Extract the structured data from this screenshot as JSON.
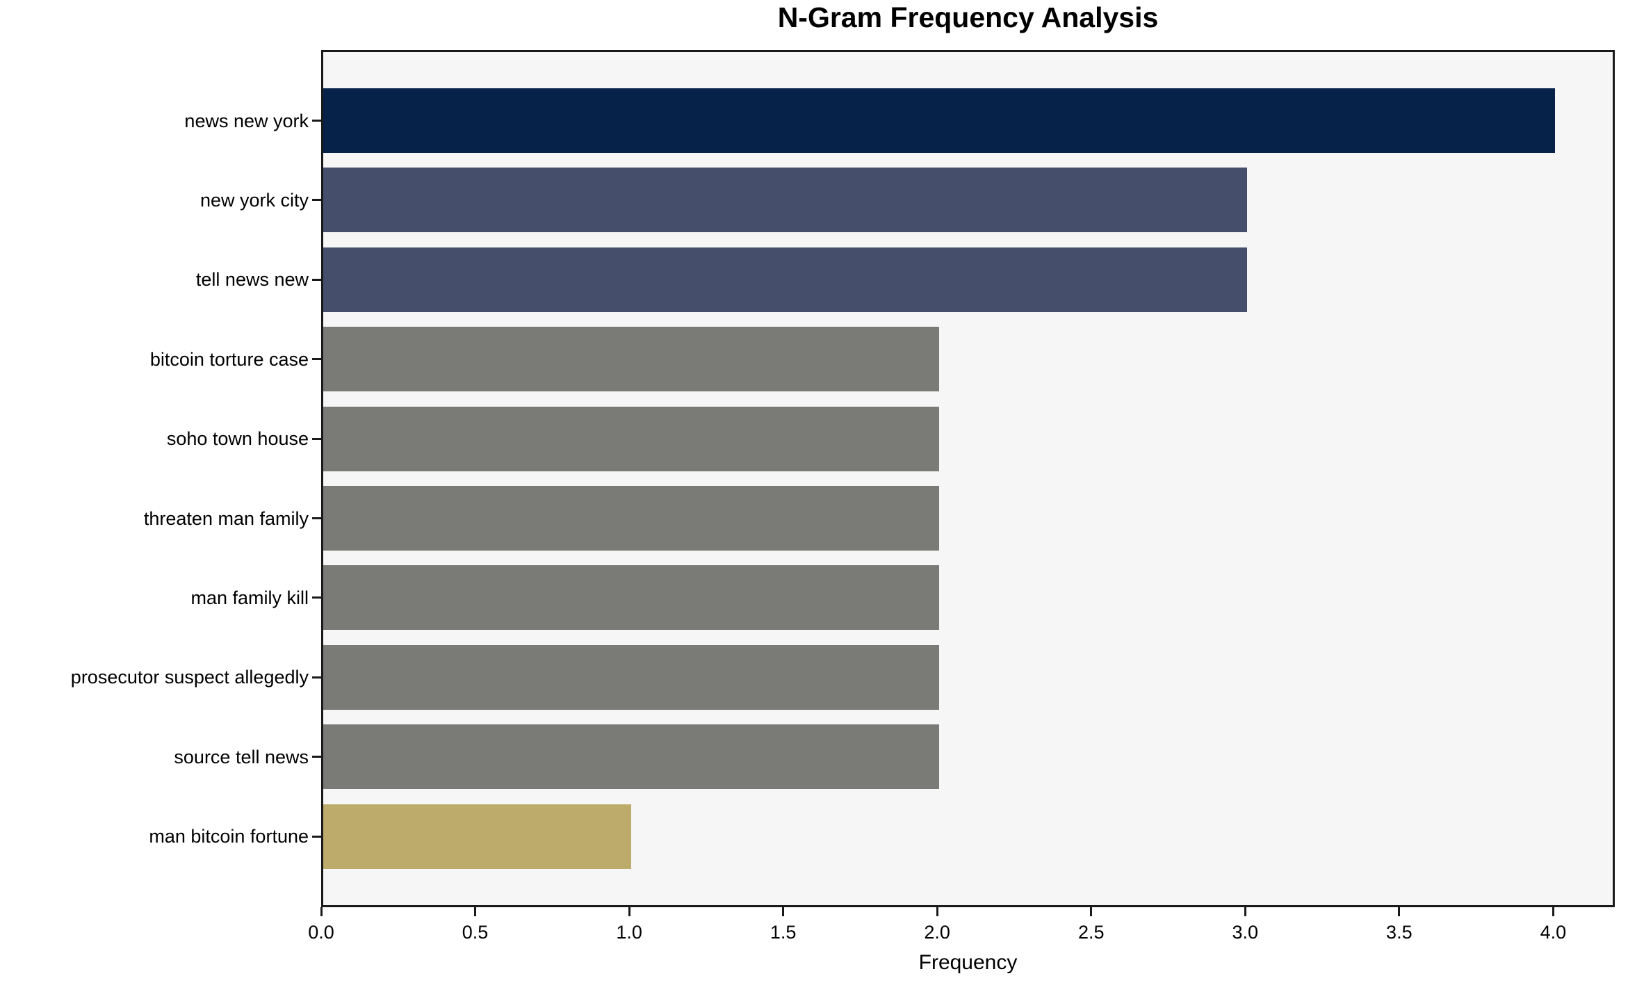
{
  "figure": {
    "background": "#ffffff",
    "plot_background": "#f6f6f6",
    "border_color": "#1a1a1a",
    "text_color": "#000000"
  },
  "chart_data": {
    "type": "bar",
    "orientation": "horizontal",
    "title": "N-Gram Frequency Analysis",
    "xlabel": "Frequency",
    "ylabel": "",
    "categories": [
      "news new york",
      "new york city",
      "tell news new",
      "bitcoin torture case",
      "soho town house",
      "threaten man family",
      "man family kill",
      "prosecutor suspect allegedly",
      "source tell news",
      "man bitcoin fortune"
    ],
    "values": [
      4,
      3,
      3,
      2,
      2,
      2,
      2,
      2,
      2,
      1
    ],
    "bar_colors": [
      "#062249",
      "#454e6a",
      "#454e6a",
      "#7a7a76",
      "#7a7a76",
      "#7a7a76",
      "#7a7a76",
      "#7a7a76",
      "#7a7a76",
      "#bcab6b"
    ],
    "xlim": [
      0,
      4.2
    ],
    "xticks": [
      0.0,
      0.5,
      1.0,
      1.5,
      2.0,
      2.5,
      3.0,
      3.5,
      4.0
    ],
    "xtick_labels": [
      "0.0",
      "0.5",
      "1.0",
      "1.5",
      "2.0",
      "2.5",
      "3.0",
      "3.5",
      "4.0"
    ],
    "grid": false,
    "legend": null
  }
}
